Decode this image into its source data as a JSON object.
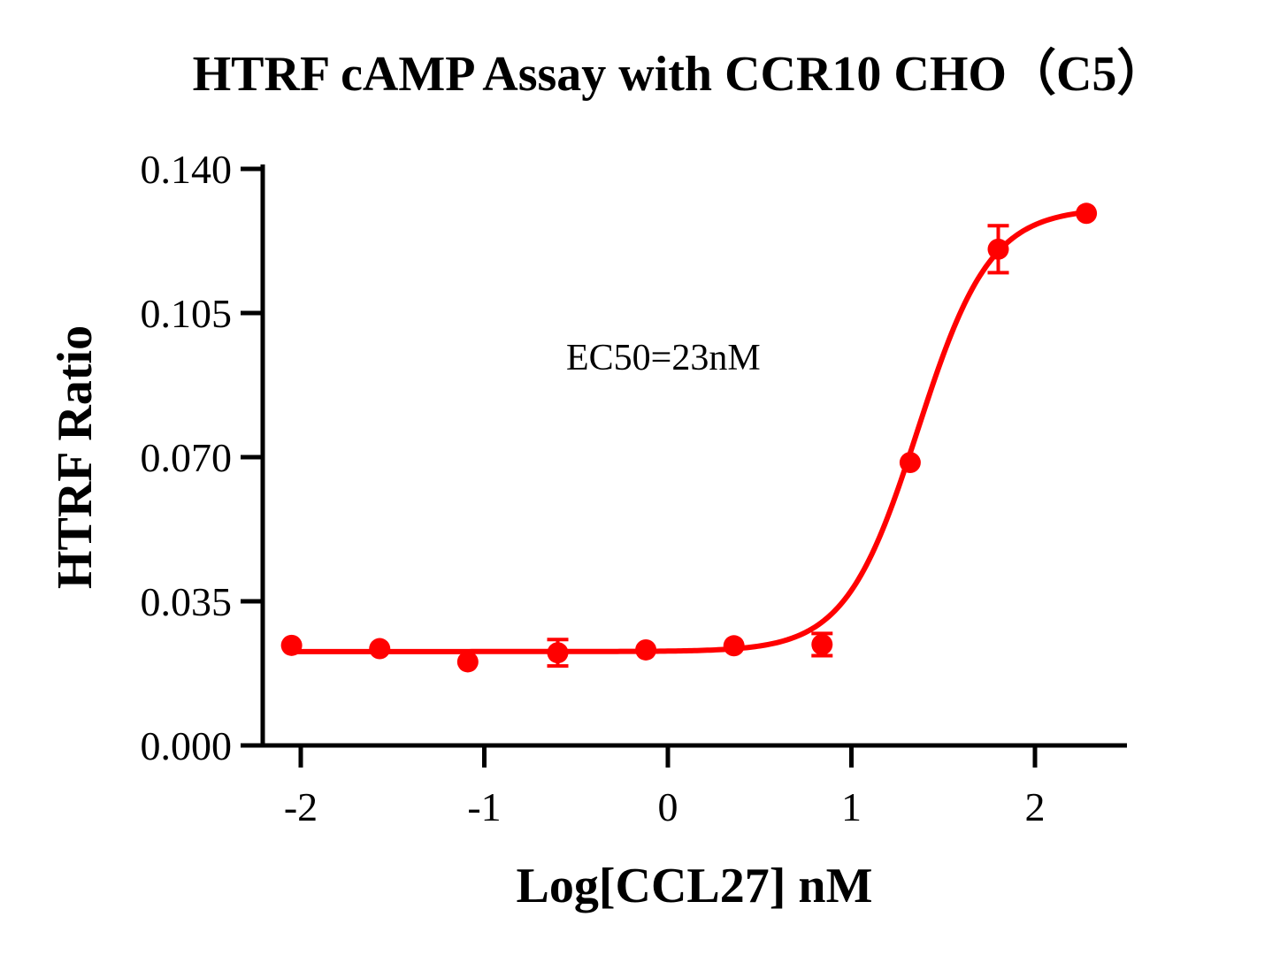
{
  "chart_data": {
    "type": "scatter",
    "title": "HTRF cAMP Assay with CCR10 CHO（C5）",
    "xlabel": "Log[CCL27] nM",
    "ylabel": "HTRF Ratio",
    "annotation": "EC50=23nM",
    "xlim": [
      -2.15,
      2.5
    ],
    "ylim": [
      0,
      0.14
    ],
    "x_ticks": [
      -2,
      -1,
      0,
      1,
      2
    ],
    "x_tick_labels": [
      "-2",
      "-1",
      "0",
      "1",
      "2"
    ],
    "y_ticks": [
      0,
      0.035,
      0.07,
      0.105,
      0.14
    ],
    "y_tick_labels": [
      "0.000",
      "0.035",
      "0.070",
      "0.105",
      "0.140"
    ],
    "grid": false,
    "color": "#ff0000",
    "points": [
      {
        "x": -2.05,
        "y": 0.0243,
        "err": 0
      },
      {
        "x": -1.57,
        "y": 0.0235,
        "err": 0
      },
      {
        "x": -1.09,
        "y": 0.0203,
        "err": 0
      },
      {
        "x": -0.6,
        "y": 0.0225,
        "err": 0.0032
      },
      {
        "x": -0.12,
        "y": 0.0232,
        "err": 0
      },
      {
        "x": 0.36,
        "y": 0.0242,
        "err": 0
      },
      {
        "x": 0.84,
        "y": 0.0245,
        "err": 0.0027
      },
      {
        "x": 1.32,
        "y": 0.0687,
        "err": 0
      },
      {
        "x": 1.8,
        "y": 0.1205,
        "err": 0.0057
      },
      {
        "x": 2.28,
        "y": 0.1292,
        "err": 0
      }
    ],
    "fit": {
      "model": "4PL",
      "bottom": 0.0228,
      "top": 0.1305,
      "logEC50": 1.3617,
      "hill": 2.2
    }
  }
}
